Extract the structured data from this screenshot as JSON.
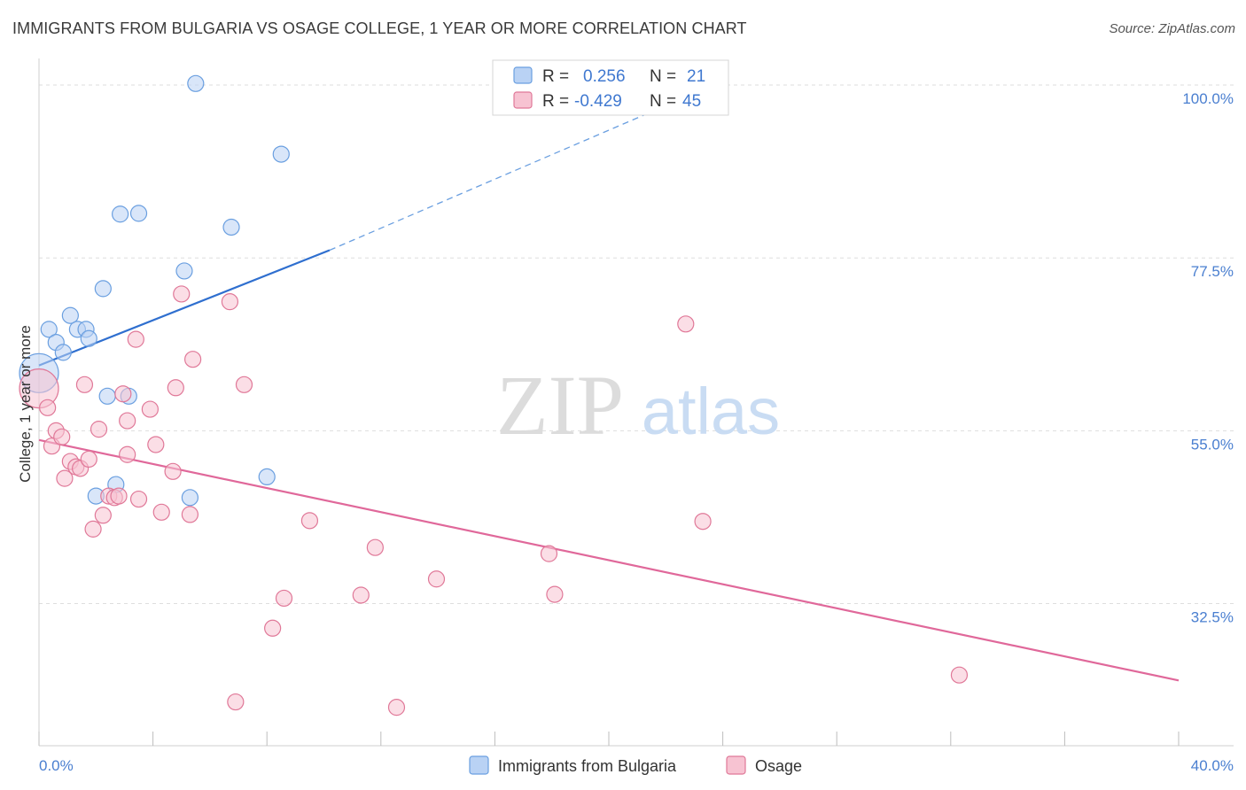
{
  "chart_data": {
    "type": "scatter",
    "title": "IMMIGRANTS FROM BULGARIA VS OSAGE COLLEGE, 1 YEAR OR MORE CORRELATION CHART",
    "source": "Source: ZipAtlas.com",
    "xlabel": "",
    "ylabel": "College, 1 year or more",
    "xlim": [
      0,
      40
    ],
    "ylim": [
      14,
      103
    ],
    "x_tick_labels": [
      "0.0%",
      "40.0%"
    ],
    "y_ticks": [
      {
        "value": 100,
        "label": "100.0%"
      },
      {
        "value": 77.5,
        "label": "77.5%"
      },
      {
        "value": 55,
        "label": "55.0%"
      },
      {
        "value": 32.5,
        "label": "32.5%"
      }
    ],
    "watermark": {
      "zip": "ZIP",
      "atlas": "atlas"
    },
    "legend": [
      {
        "r_label": "R =",
        "r_value": "0.256",
        "n_label": "N =",
        "n_value": "21"
      },
      {
        "r_label": "R =",
        "r_value": "-0.429",
        "n_label": "N =",
        "n_value": "45"
      }
    ],
    "series": [
      {
        "name": "Immigrants from Bulgaria",
        "color": "#6a9fe0",
        "fill": "#b9d2f4",
        "trend": {
          "x0": 0,
          "y0": 63.5,
          "x1": 10.2,
          "y1": 78.5,
          "dash_x1": 24,
          "dash_y1": 100.5
        },
        "points": [
          {
            "x": 0.0,
            "y": 62.5,
            "big": true
          },
          {
            "x": 0.35,
            "y": 68.2
          },
          {
            "x": 0.6,
            "y": 66.5
          },
          {
            "x": 0.85,
            "y": 65.2
          },
          {
            "x": 1.1,
            "y": 70.0
          },
          {
            "x": 1.35,
            "y": 68.2
          },
          {
            "x": 1.65,
            "y": 68.2
          },
          {
            "x": 1.75,
            "y": 67.0
          },
          {
            "x": 2.25,
            "y": 73.5
          },
          {
            "x": 2.4,
            "y": 59.5
          },
          {
            "x": 2.85,
            "y": 83.2
          },
          {
            "x": 3.15,
            "y": 59.5
          },
          {
            "x": 3.5,
            "y": 83.3
          },
          {
            "x": 5.1,
            "y": 75.8
          },
          {
            "x": 5.5,
            "y": 100.2
          },
          {
            "x": 6.75,
            "y": 81.5
          },
          {
            "x": 8.5,
            "y": 91.0
          },
          {
            "x": 2.0,
            "y": 46.5
          },
          {
            "x": 2.7,
            "y": 48.0
          },
          {
            "x": 5.3,
            "y": 46.3
          },
          {
            "x": 8.0,
            "y": 49.0
          }
        ]
      },
      {
        "name": "Osage",
        "color": "#e07898",
        "fill": "#f7c3d2",
        "trend": {
          "x0": 0,
          "y0": 53.8,
          "x1": 40,
          "y1": 22.5
        },
        "points": [
          {
            "x": 0.0,
            "y": 60.5,
            "big": true
          },
          {
            "x": 0.3,
            "y": 58.0
          },
          {
            "x": 0.45,
            "y": 53.0
          },
          {
            "x": 0.6,
            "y": 55.0
          },
          {
            "x": 0.8,
            "y": 54.2
          },
          {
            "x": 0.9,
            "y": 48.8
          },
          {
            "x": 1.1,
            "y": 51.0
          },
          {
            "x": 1.3,
            "y": 50.3
          },
          {
            "x": 1.45,
            "y": 50.1
          },
          {
            "x": 1.6,
            "y": 61.0
          },
          {
            "x": 1.75,
            "y": 51.3
          },
          {
            "x": 1.9,
            "y": 42.2
          },
          {
            "x": 2.1,
            "y": 55.2
          },
          {
            "x": 2.25,
            "y": 44.0
          },
          {
            "x": 2.45,
            "y": 46.5
          },
          {
            "x": 2.65,
            "y": 46.3
          },
          {
            "x": 2.8,
            "y": 46.5
          },
          {
            "x": 2.95,
            "y": 59.8
          },
          {
            "x": 3.1,
            "y": 51.9
          },
          {
            "x": 3.1,
            "y": 56.3
          },
          {
            "x": 3.4,
            "y": 66.9
          },
          {
            "x": 3.5,
            "y": 46.1
          },
          {
            "x": 3.9,
            "y": 57.8
          },
          {
            "x": 4.1,
            "y": 53.2
          },
          {
            "x": 4.3,
            "y": 44.4
          },
          {
            "x": 4.7,
            "y": 49.7
          },
          {
            "x": 4.8,
            "y": 60.6
          },
          {
            "x": 5.0,
            "y": 72.8
          },
          {
            "x": 5.3,
            "y": 44.1
          },
          {
            "x": 5.4,
            "y": 64.3
          },
          {
            "x": 6.7,
            "y": 71.8
          },
          {
            "x": 7.2,
            "y": 61.0
          },
          {
            "x": 6.9,
            "y": 19.7
          },
          {
            "x": 8.2,
            "y": 29.3
          },
          {
            "x": 8.6,
            "y": 33.2
          },
          {
            "x": 9.5,
            "y": 43.3
          },
          {
            "x": 11.3,
            "y": 33.6
          },
          {
            "x": 11.8,
            "y": 39.8
          },
          {
            "x": 12.55,
            "y": 19.0
          },
          {
            "x": 13.95,
            "y": 35.7
          },
          {
            "x": 17.9,
            "y": 39.0
          },
          {
            "x": 18.1,
            "y": 33.7
          },
          {
            "x": 22.7,
            "y": 68.9
          },
          {
            "x": 23.3,
            "y": 43.2
          },
          {
            "x": 32.3,
            "y": 23.2
          }
        ]
      }
    ]
  }
}
